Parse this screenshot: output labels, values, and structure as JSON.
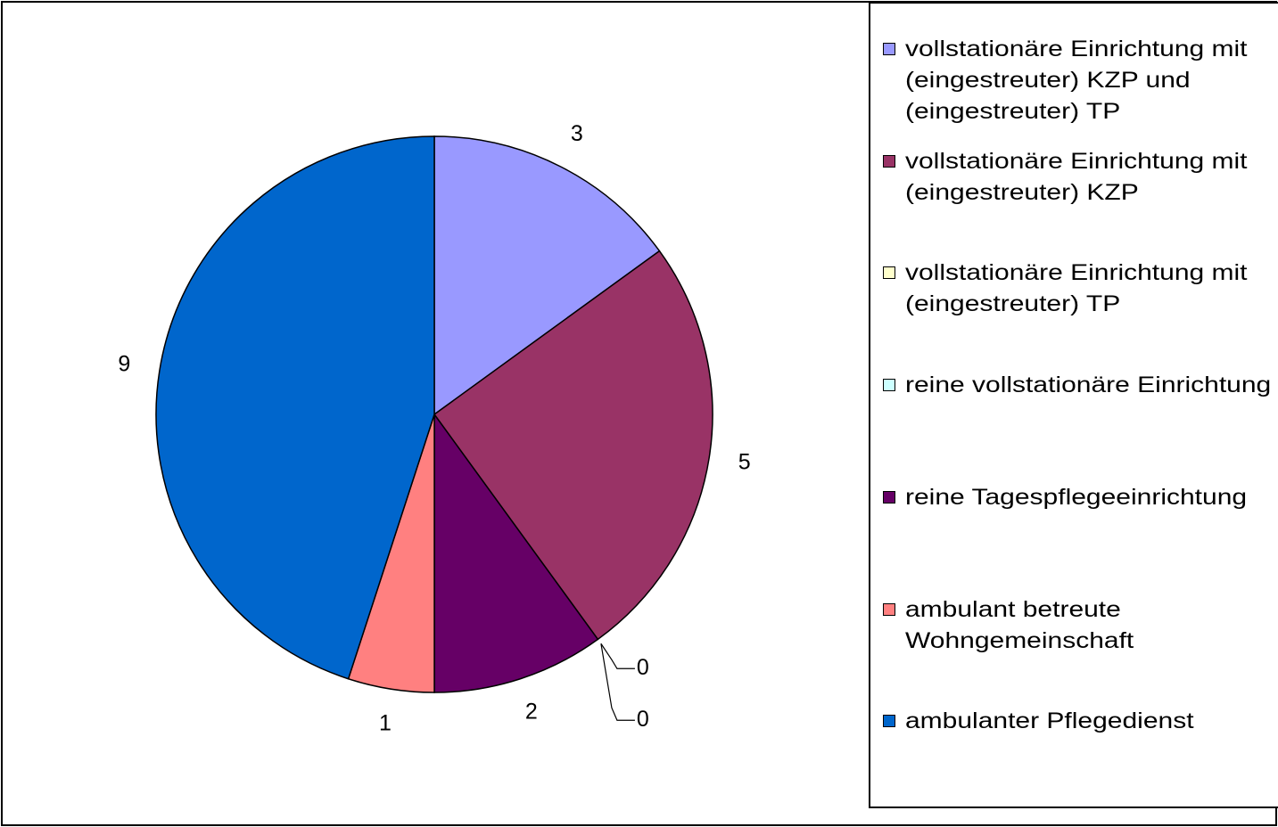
{
  "chart_data": {
    "type": "pie",
    "categories": [
      "vollstationäre Einrichtung mit (eingestreuter) KZP und (eingestreuter) TP",
      "vollstationäre Einrichtung mit (eingestreuter) KZP",
      "vollstationäre Einrichtung mit (eingestreuter) TP",
      "reine vollstationäre Einrichtung",
      "reine Tagespflegeeinrichtung",
      "ambulant betreute Wohngemeinschaft",
      "ambulanter Pflegedienst"
    ],
    "values": [
      3,
      5,
      0,
      0,
      2,
      1,
      9
    ],
    "colors": [
      "#9999ff",
      "#993366",
      "#ffffcc",
      "#ccffff",
      "#660066",
      "#ff8080",
      "#0066cc"
    ],
    "legend": "right"
  }
}
